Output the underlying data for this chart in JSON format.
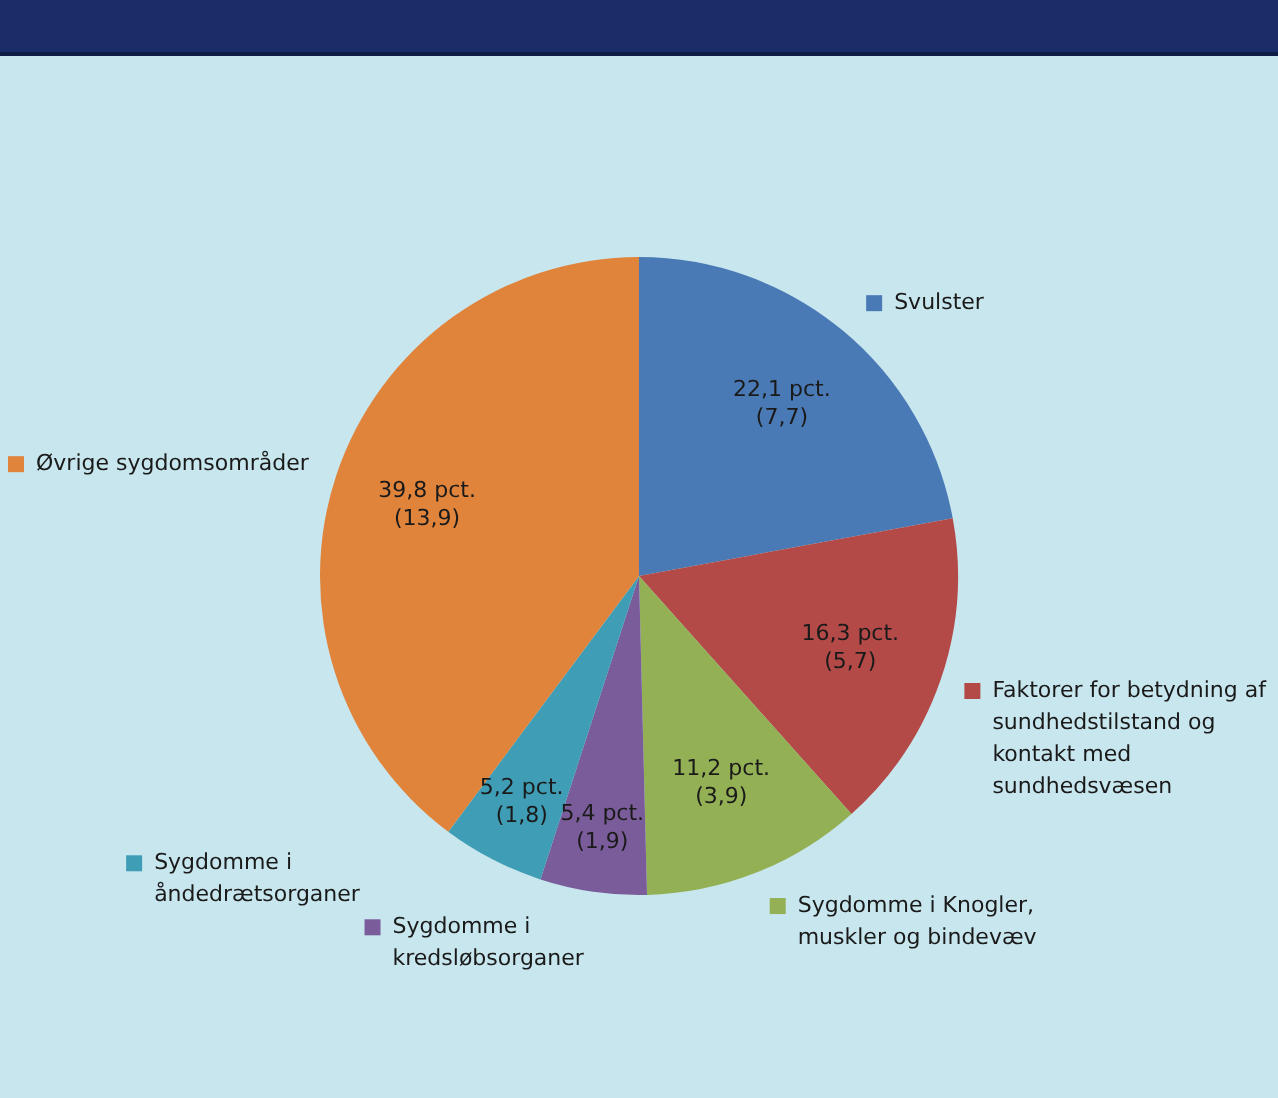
{
  "chart_data": {
    "type": "pie",
    "categories": [
      "Svulster",
      "Faktorer for betydning af sundhedstilstand og kontakt med sundhedsvæsen",
      "Sygdomme i Knogler, muskler og bindevæv",
      "Sygdomme i kredsløbsorganer",
      "Sygdomme i åndedrætsorganer",
      "Øvrige sygdomsområder"
    ],
    "values": [
      22.1,
      16.3,
      11.2,
      5.4,
      5.2,
      39.8
    ],
    "legend": "right",
    "colors": [
      "#4a7ab5",
      "#b34a48",
      "#93b055",
      "#7a5c9a",
      "#3f9db6",
      "#e0843c"
    ],
    "value_labels": [
      "22,1 pct.\n(7,7)",
      "16,3 pct.\n(5,7)",
      "11,2 pct.\n(3,9)",
      "5,4 pct.\n(1,9)",
      "5,2 pct.\n(1,8)",
      "39,8 pct.\n(13,9)"
    ]
  }
}
